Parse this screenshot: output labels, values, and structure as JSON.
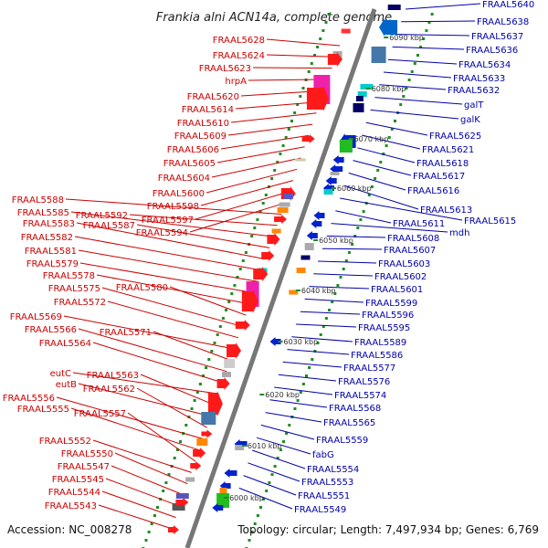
{
  "title": "Frankia alni ACN14a, complete genome",
  "footer": {
    "accession": "Accession: NC_008278",
    "summary": "Topology: circular; Length: 7,497,934 bp; Genes: 6,769"
  },
  "colors": {
    "left_label": "#cc0000",
    "right_label": "#0000aa",
    "backbone": "#777777",
    "ticks": "#228b22",
    "tick_label": "#333333"
  },
  "kbp_marks": [
    "6000 kbp",
    "6010 kbp",
    "6020 kbp",
    "6030 kbp",
    "6040 kbp",
    "6050 kbp",
    "6060 kbp",
    "6070 kbp",
    "6080 kbp",
    "6090 kbp"
  ],
  "left_labels": [
    "FRAAL5628",
    "FRAAL5624",
    "FRAAL5623",
    "hrpA",
    "FRAAL5620",
    "FRAAL5614",
    "FRAAL5610",
    "FRAAL5609",
    "FRAAL5606",
    "FRAAL5605",
    "FRAAL5604",
    "FRAAL5600",
    "FRAAL5598",
    "FRAAL5597",
    "FRAAL5594",
    "FRAAL5588",
    "FRAAL5592",
    "FRAAL5585",
    "FRAAL5587",
    "FRAAL5583",
    "FRAAL5582",
    "FRAAL5581",
    "FRAAL5579",
    "FRAAL5578",
    "FRAAL5580",
    "FRAAL5575",
    "FRAAL5572",
    "FRAAL5569",
    "FRAAL5571",
    "FRAAL5566",
    "FRAAL5564",
    "eutC",
    "FRAAL5563",
    "eutB",
    "FRAAL5562",
    "FRAAL5556",
    "FRAAL5555",
    "FRAAL5557",
    "FRAAL5552",
    "FRAAL5550",
    "FRAAL5547",
    "FRAAL5545",
    "FRAAL5544",
    "FRAAL5543"
  ],
  "right_labels": [
    "FRAAL5640",
    "FRAAL5638",
    "FRAAL5637",
    "FRAAL5636",
    "FRAAL5634",
    "FRAAL5633",
    "FRAAL5632",
    "galT",
    "galK",
    "FRAAL5625",
    "FRAAL5621",
    "FRAAL5618",
    "FRAAL5617",
    "FRAAL5616",
    "FRAAL5613",
    "FRAAL5615",
    "FRAAL5611",
    "mdh",
    "FRAAL5608",
    "FRAAL5607",
    "FRAAL5603",
    "FRAAL5602",
    "FRAAL5601",
    "FRAAL5599",
    "FRAAL5596",
    "FRAAL5595",
    "FRAAL5589",
    "FRAAL5586",
    "FRAAL5577",
    "FRAAL5576",
    "FRAAL5574",
    "FRAAL5568",
    "FRAAL5565",
    "FRAAL5559",
    "fabG",
    "FRAAL5554",
    "FRAAL5553",
    "FRAAL5551",
    "FRAAL5549"
  ]
}
